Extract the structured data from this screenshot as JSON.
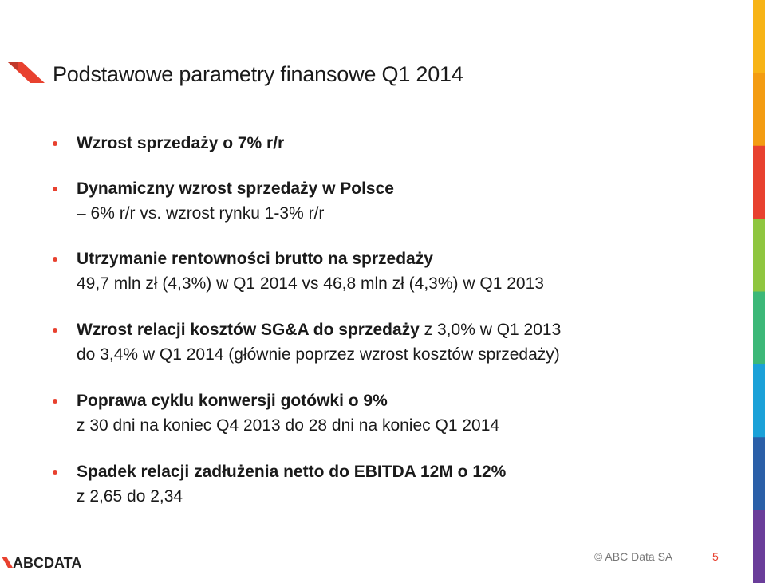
{
  "slide": {
    "title": "Podstawowe parametry finansowe Q1 2014",
    "bullets": [
      {
        "lead": "Wzrost sprzedaży o 7% r/r"
      },
      {
        "lead": "Dynamiczny wzrost sprzedaży w Polsce",
        "sub": "– 6% r/r vs. wzrost rynku 1-3% r/r"
      },
      {
        "lead": "Utrzymanie rentowności brutto na sprzedaży",
        "sub": "49,7 mln zł (4,3%) w Q1 2014 vs 46,8 mln zł (4,3%) w Q1 2013"
      },
      {
        "lead": "Wzrost relacji kosztów SG&A do sprzedaży",
        "lead_tail": " z 3,0% w Q1 2013",
        "sub": "do 3,4% w Q1 2014 (głównie poprzez wzrost kosztów sprzedaży)"
      },
      {
        "lead": "Poprawa cyklu konwersji gotówki o 9%",
        "sub": "z 30 dni na koniec Q4 2013 do 28 dni na koniec Q1 2014"
      },
      {
        "lead": "Spadek relacji zadłużenia netto do EBITDA 12M o 12%",
        "sub": "z 2,65 do 2,34"
      }
    ]
  },
  "footer": {
    "logo_text": "ABCDATA",
    "copyright": "© ABC Data SA",
    "page_number": "5"
  },
  "colors": {
    "accent_red": "#e8412f",
    "bar": [
      "#f7b416",
      "#f39c12",
      "#e8412f",
      "#8fc63f",
      "#3cb878",
      "#1ba1d8",
      "#2b5fa8",
      "#6a3d9a"
    ]
  }
}
